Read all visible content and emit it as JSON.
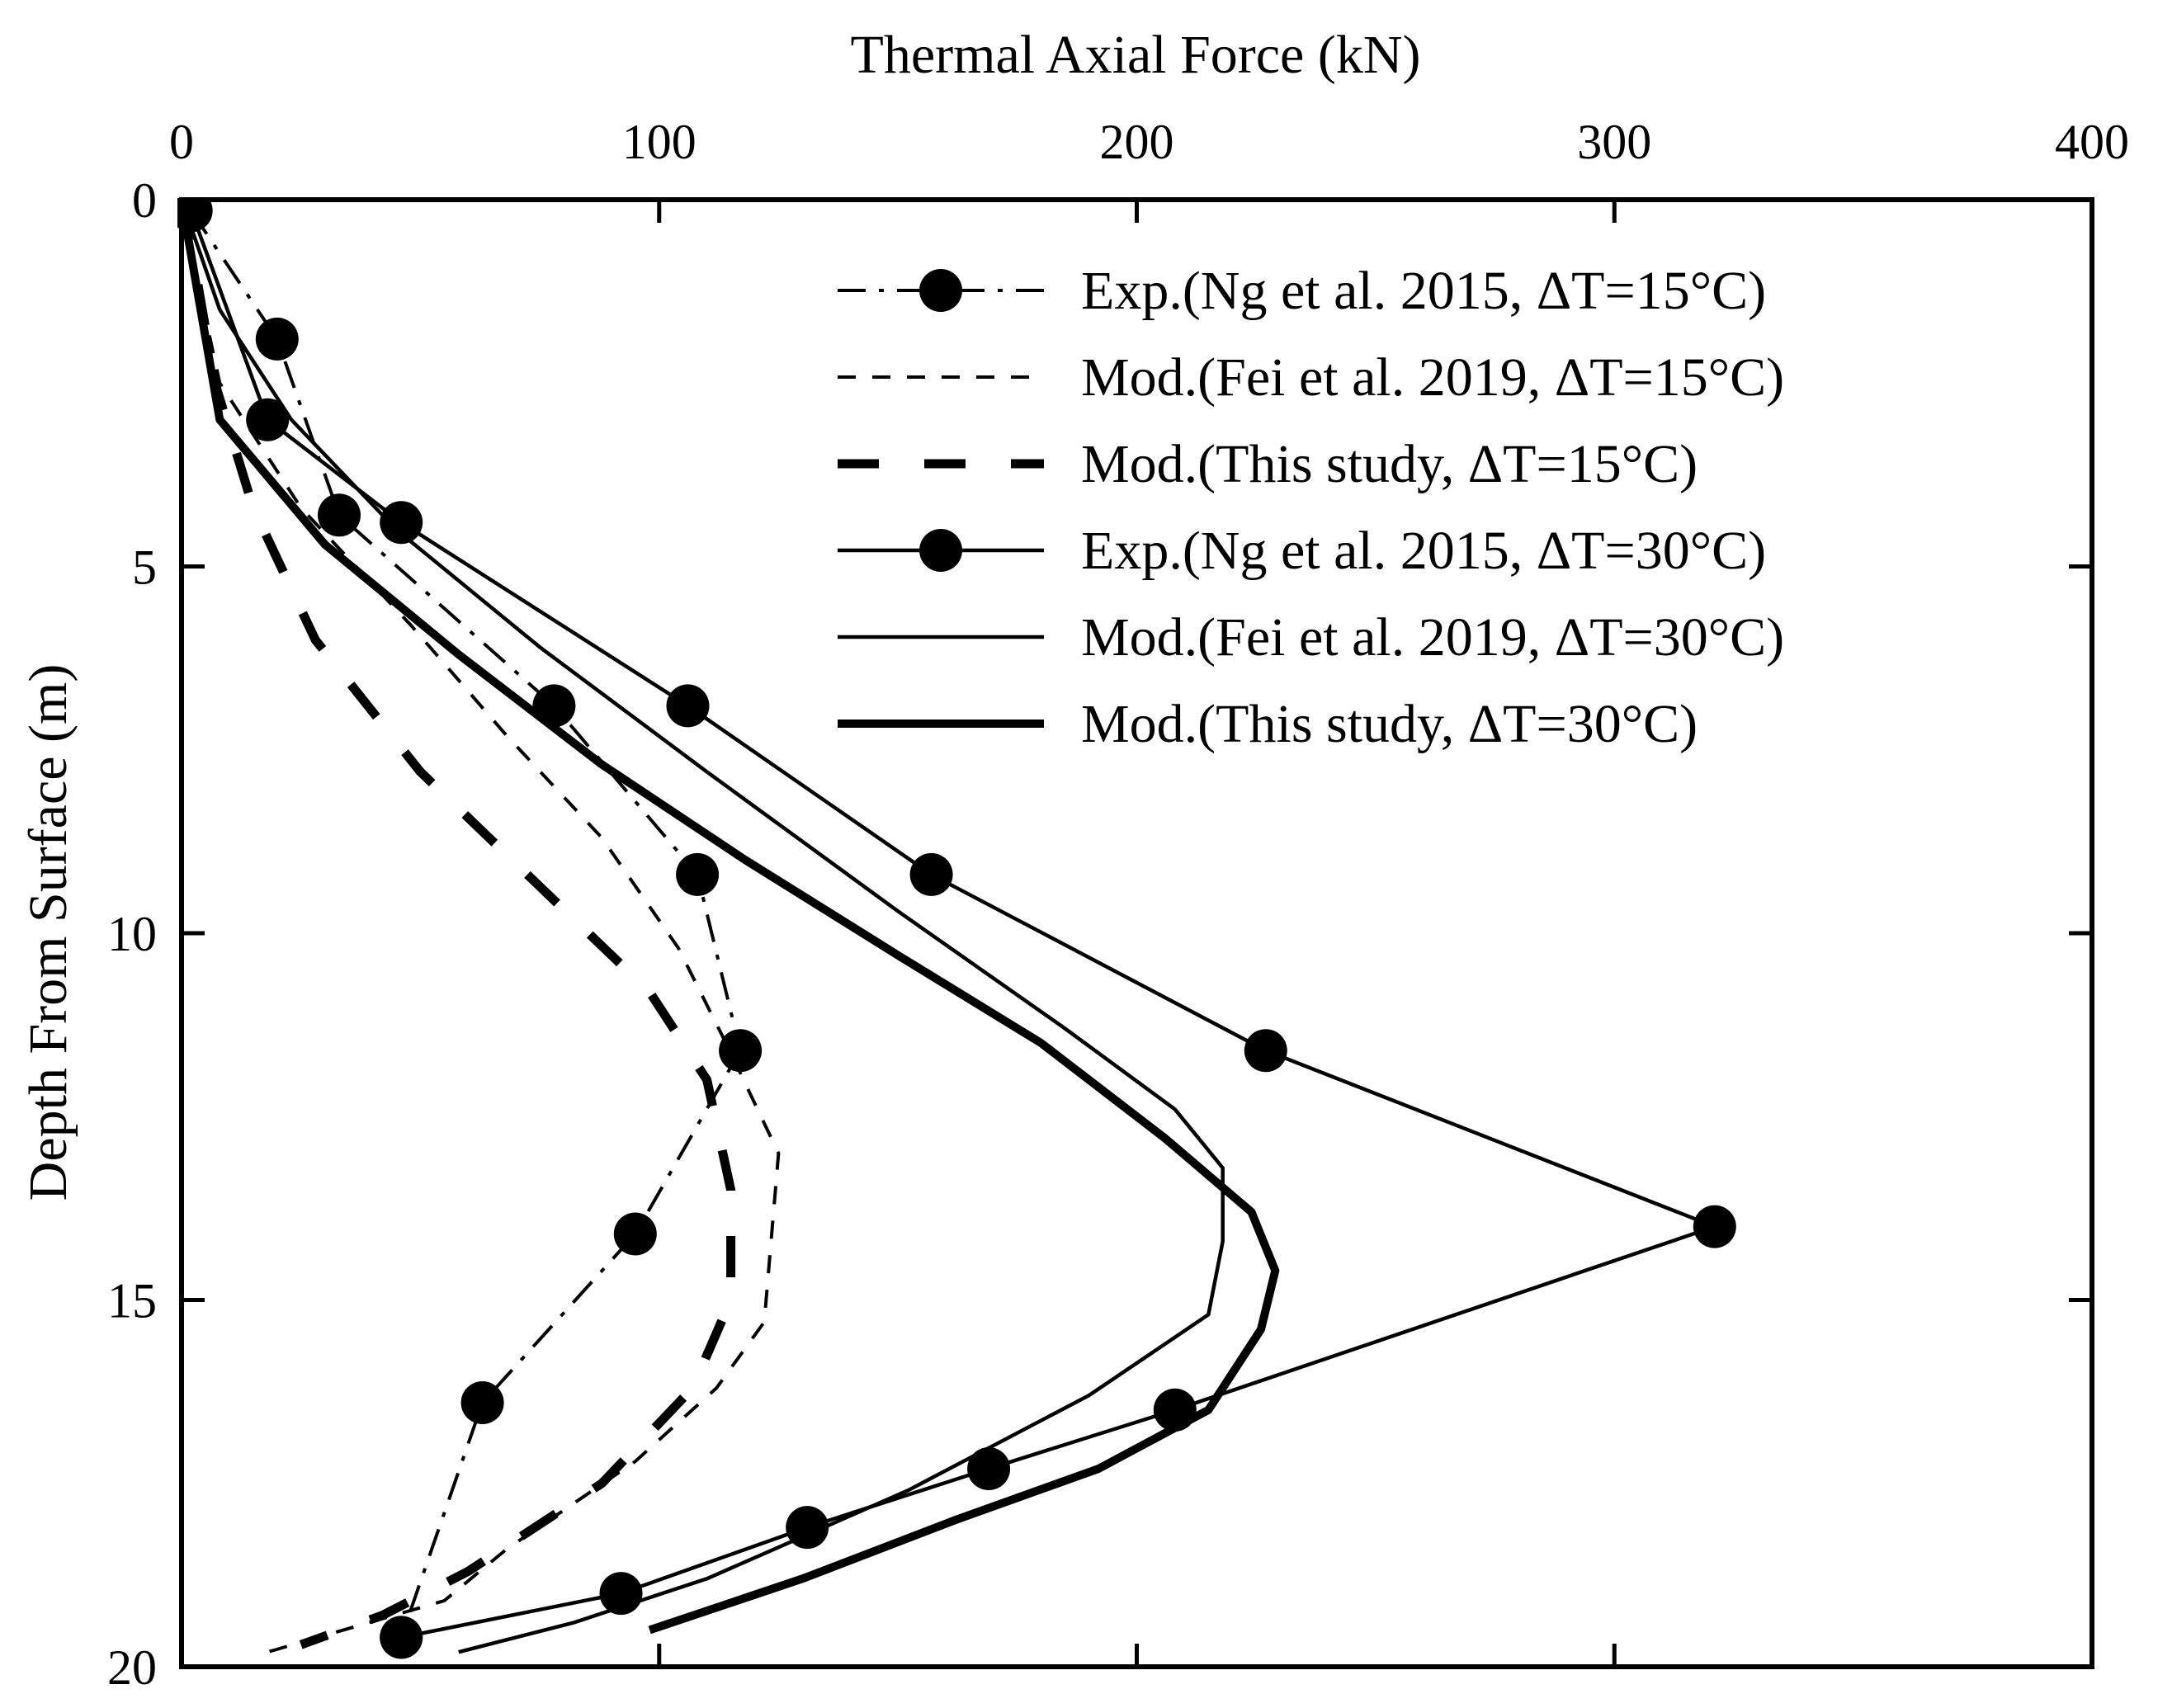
{
  "chart_data": {
    "type": "line",
    "xlabel": "Thermal Axial Force (kN)",
    "ylabel": "Depth From Surface (m)",
    "x_axis_position": "top",
    "y_axis_inverted": true,
    "xlim": [
      0,
      400
    ],
    "ylim": [
      0,
      20
    ],
    "x_ticks": [
      "0",
      "100",
      "200",
      "300",
      "400"
    ],
    "y_ticks": [
      "0",
      "5",
      "10",
      "15",
      "20"
    ],
    "grid": false,
    "legend_position": "top-right",
    "series": [
      {
        "name": "Exp.(Ng et al. 2015,   ΔT=15°C)",
        "style": "dashdot-marker",
        "points": [
          [
            2,
            0.15
          ],
          [
            20,
            1.9
          ],
          [
            33,
            4.3
          ],
          [
            78,
            6.9
          ],
          [
            108,
            9.2
          ],
          [
            117,
            11.6
          ],
          [
            95,
            14.1
          ],
          [
            63,
            16.4
          ],
          [
            46,
            19.6
          ]
        ]
      },
      {
        "name": "Mod.(Fei et al. 2019,   ΔT=15°C)",
        "style": "short-dash",
        "points": [
          [
            0,
            0
          ],
          [
            3,
            1.0
          ],
          [
            8,
            2.5
          ],
          [
            25,
            4.2
          ],
          [
            48,
            5.8
          ],
          [
            68,
            7.3
          ],
          [
            88,
            8.7
          ],
          [
            104,
            10.2
          ],
          [
            114,
            11.5
          ],
          [
            125,
            13.0
          ],
          [
            122,
            15.3
          ],
          [
            112,
            16.2
          ],
          [
            95,
            17.2
          ],
          [
            68,
            18.4
          ],
          [
            55,
            19.1
          ],
          [
            18,
            19.8
          ]
        ]
      },
      {
        "name": "Mod.(This study,   ΔT=15°C)",
        "style": "long-dash-thick",
        "points": [
          [
            0,
            0
          ],
          [
            3,
            1.0
          ],
          [
            7,
            2.5
          ],
          [
            15,
            4.2
          ],
          [
            28,
            6.0
          ],
          [
            50,
            7.8
          ],
          [
            74,
            9.3
          ],
          [
            98,
            10.8
          ],
          [
            110,
            12.0
          ],
          [
            115,
            13.5
          ],
          [
            115,
            15.0
          ],
          [
            107,
            16.2
          ],
          [
            88,
            17.5
          ],
          [
            60,
            18.7
          ],
          [
            42,
            19.3
          ],
          [
            25,
            19.7
          ]
        ]
      },
      {
        "name": "Exp.(Ng et al. 2015,   ΔT=30°C)",
        "style": "solid-marker",
        "points": [
          [
            2,
            0.15
          ],
          [
            18,
            3.0
          ],
          [
            46,
            4.4
          ],
          [
            106,
            6.9
          ],
          [
            157,
            9.2
          ],
          [
            227,
            11.6
          ],
          [
            321,
            14.0
          ],
          [
            208,
            16.5
          ],
          [
            169,
            17.3
          ],
          [
            131,
            18.1
          ],
          [
            92,
            19.0
          ],
          [
            46,
            19.6
          ]
        ]
      },
      {
        "name": "Mod.(Fei et al. 2019,   ΔT=30°C)",
        "style": "solid-thin",
        "points": [
          [
            0,
            0
          ],
          [
            8,
            1.5
          ],
          [
            23,
            3.0
          ],
          [
            45,
            4.5
          ],
          [
            75,
            6.1
          ],
          [
            110,
            7.8
          ],
          [
            150,
            9.7
          ],
          [
            185,
            11.3
          ],
          [
            208,
            12.4
          ],
          [
            218,
            13.2
          ],
          [
            218,
            14.2
          ],
          [
            215,
            15.2
          ],
          [
            190,
            16.3
          ],
          [
            152,
            17.6
          ],
          [
            110,
            18.8
          ],
          [
            82,
            19.4
          ],
          [
            58,
            19.8
          ]
        ]
      },
      {
        "name": "Mod.(This study,   ΔT=30°C)",
        "style": "solid-thick",
        "points": [
          [
            0,
            0
          ],
          [
            8,
            3.0
          ],
          [
            30,
            4.7
          ],
          [
            58,
            6.2
          ],
          [
            88,
            7.7
          ],
          [
            118,
            9.0
          ],
          [
            150,
            10.3
          ],
          [
            180,
            11.5
          ],
          [
            206,
            12.8
          ],
          [
            224,
            13.8
          ],
          [
            229,
            14.6
          ],
          [
            226,
            15.4
          ],
          [
            215,
            16.5
          ],
          [
            192,
            17.3
          ],
          [
            162,
            18.0
          ],
          [
            130,
            18.8
          ],
          [
            98,
            19.5
          ]
        ]
      }
    ]
  }
}
